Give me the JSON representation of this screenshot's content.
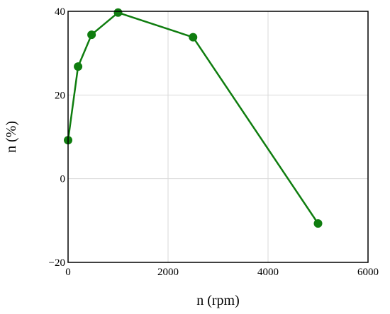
{
  "chart_data": {
    "type": "line",
    "title": "",
    "xlabel": "n (rpm)",
    "ylabel": "n (%)",
    "xlim": [
      0,
      6000
    ],
    "ylim": [
      -20,
      40
    ],
    "x_ticks": [
      0,
      2000,
      4000,
      6000
    ],
    "y_ticks": [
      -20,
      0,
      20,
      40
    ],
    "x_tick_labels": [
      "0",
      "2000",
      "4000",
      "6000"
    ],
    "y_tick_labels": [
      "−20",
      "0",
      "20",
      "40"
    ],
    "grid": true,
    "legend": "none",
    "series": [
      {
        "color": "#0f7d0f",
        "marker": "circle",
        "points": [
          {
            "x": 0,
            "y": 9.2
          },
          {
            "x": 200,
            "y": 26.8
          },
          {
            "x": 470,
            "y": 34.4
          },
          {
            "x": 1000,
            "y": 39.7
          },
          {
            "x": 2500,
            "y": 33.8
          },
          {
            "x": 5000,
            "y": -10.7
          }
        ]
      }
    ]
  }
}
